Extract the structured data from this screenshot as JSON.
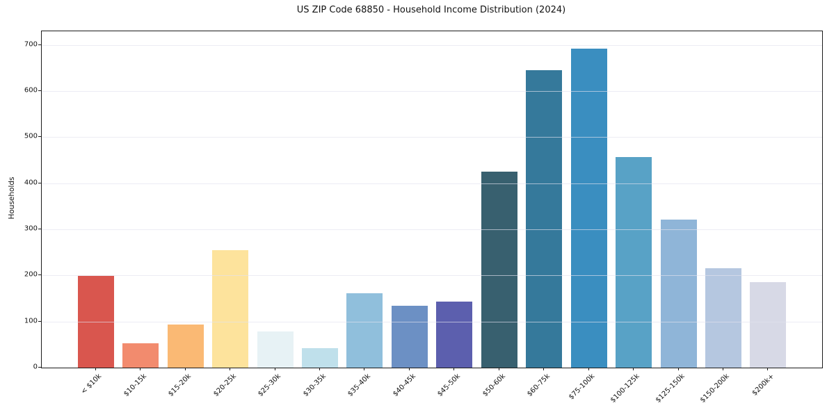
{
  "chart_data": {
    "type": "bar",
    "title": "US ZIP Code 68850 - Household Income Distribution (2024)",
    "xlabel": "",
    "ylabel": "Households",
    "categories": [
      "< $10k",
      "$10-15k",
      "$15-20k",
      "$20-25k",
      "$25-30k",
      "$30-35k",
      "$35-40k",
      "$40-45k",
      "$45-50k",
      "$50-60k",
      "$60-75k",
      "$75-100k",
      "$100-125k",
      "$125-150k",
      "$150-200k",
      "$200k+"
    ],
    "values": [
      199,
      53,
      94,
      255,
      78,
      42,
      161,
      134,
      144,
      425,
      645,
      693,
      457,
      322,
      215,
      186
    ],
    "bar_colors": [
      "#d9564e",
      "#f28b6e",
      "#fab974",
      "#fde39c",
      "#e7f2f5",
      "#bfe0eb",
      "#90bfdc",
      "#6c90c4",
      "#5c5fae",
      "#38606f",
      "#35799b",
      "#3a8ec0",
      "#58a2c6",
      "#8fb5d8",
      "#b5c7e0",
      "#d7d9e6"
    ],
    "yticks": [
      0,
      100,
      200,
      300,
      400,
      500,
      600,
      700
    ],
    "ylim": [
      0,
      730
    ],
    "grid": "horizontal",
    "grid_color": "#e8e8ee",
    "axis_color": "#1a1a1a",
    "legend": "none",
    "x_tick_rotation_deg": 45
  }
}
